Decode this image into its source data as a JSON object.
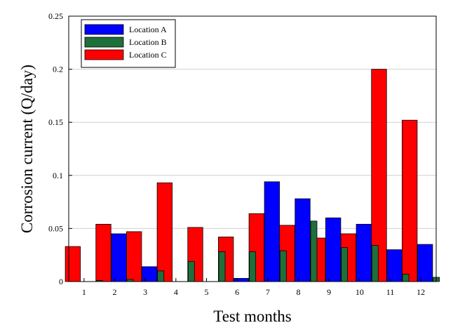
{
  "chart_data": {
    "type": "bar",
    "title": "",
    "xlabel": "Test months",
    "ylabel": "Corrosion current (Q/day)",
    "categories": [
      "1",
      "2",
      "3",
      "4",
      "5",
      "6",
      "7",
      "8",
      "9",
      "10",
      "11",
      "12"
    ],
    "ylim": [
      0,
      0.25
    ],
    "yticks": [
      "0",
      "0.05",
      "0.1",
      "0.15",
      "0.2",
      "0.25"
    ],
    "grid": "horizontal",
    "legend_position": "top-left",
    "series": [
      {
        "name": "Location C",
        "color": "#ff0000",
        "values": [
          0.033,
          0.054,
          0.047,
          0.093,
          0.051,
          0.042,
          0.064,
          0.053,
          0.041,
          0.045,
          0.2,
          0.152
        ]
      },
      {
        "name": "Location A",
        "color": "#0000ff",
        "values": [
          0.0,
          0.045,
          0.014,
          0.0,
          0.0,
          0.003,
          0.094,
          0.078,
          0.06,
          0.054,
          0.03,
          0.035
        ]
      },
      {
        "name": "Location B",
        "color": "#1f6f3a",
        "values": [
          0.001,
          0.002,
          0.01,
          0.019,
          0.028,
          0.028,
          0.029,
          0.057,
          0.032,
          0.034,
          0.007,
          0.004
        ]
      }
    ],
    "legend_order": [
      "Location A",
      "Location B",
      "Location C"
    ]
  }
}
